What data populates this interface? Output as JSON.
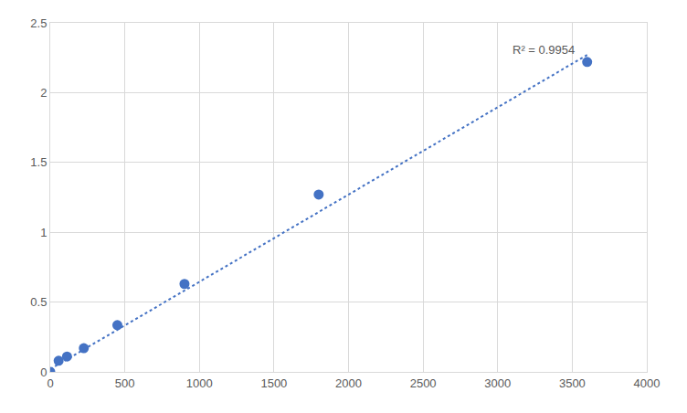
{
  "chart_data": {
    "type": "scatter",
    "xlim": [
      0,
      4000
    ],
    "xticks": [
      0,
      500,
      1000,
      1500,
      2000,
      2500,
      3000,
      3500,
      4000
    ],
    "ylim": [
      0,
      2.5
    ],
    "yticks": [
      0,
      0.5,
      1,
      1.5,
      2,
      2.5
    ],
    "grid": true,
    "series": [
      {
        "type": "scatter",
        "marker": "circle",
        "color": "#4472c4",
        "x": [
          0,
          56.25,
          112.5,
          225,
          450,
          900,
          1800,
          3600
        ],
        "values": [
          0,
          0.08,
          0.11,
          0.17,
          0.335,
          0.63,
          1.27,
          2.22
        ]
      },
      {
        "type": "line",
        "line_style": "dotted",
        "color": "#4472c4",
        "x": [
          0,
          3600
        ],
        "values": [
          0.02,
          2.27
        ]
      }
    ],
    "annotations": [
      {
        "text": "R² = 0.9954"
      }
    ]
  }
}
